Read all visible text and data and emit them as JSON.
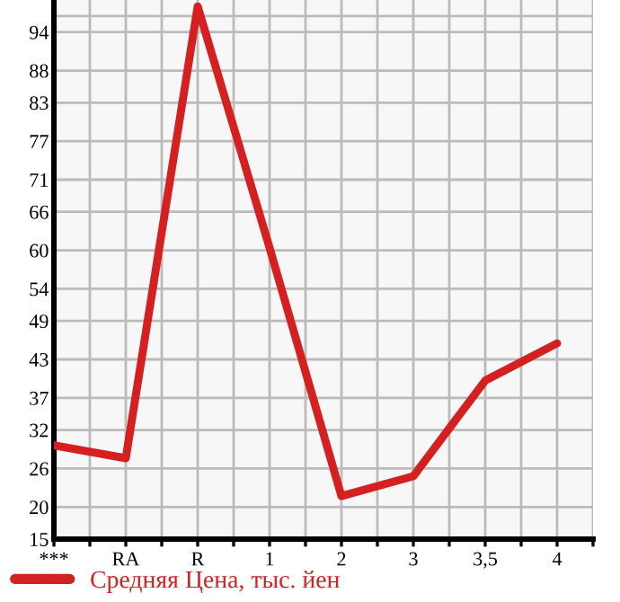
{
  "chart_data": {
    "type": "line",
    "categories": [
      "***",
      "RA",
      "R",
      "1",
      "2",
      "3",
      "3,5",
      "4"
    ],
    "series": [
      {
        "name": "Средняя Цена, тыс. йен",
        "color": "#d42020",
        "values": [
          29.6,
          27.6,
          98,
          60.4,
          21.7,
          24.8,
          39.7,
          45.5
        ]
      }
    ],
    "ylim": [
      15,
      99
    ],
    "yticks": [
      15,
      20,
      26,
      32,
      37,
      43,
      49,
      54,
      60,
      66,
      71,
      77,
      83,
      88,
      94
    ],
    "grid": true,
    "legend": "bottom left",
    "marker": "none",
    "line_style": "solid"
  }
}
